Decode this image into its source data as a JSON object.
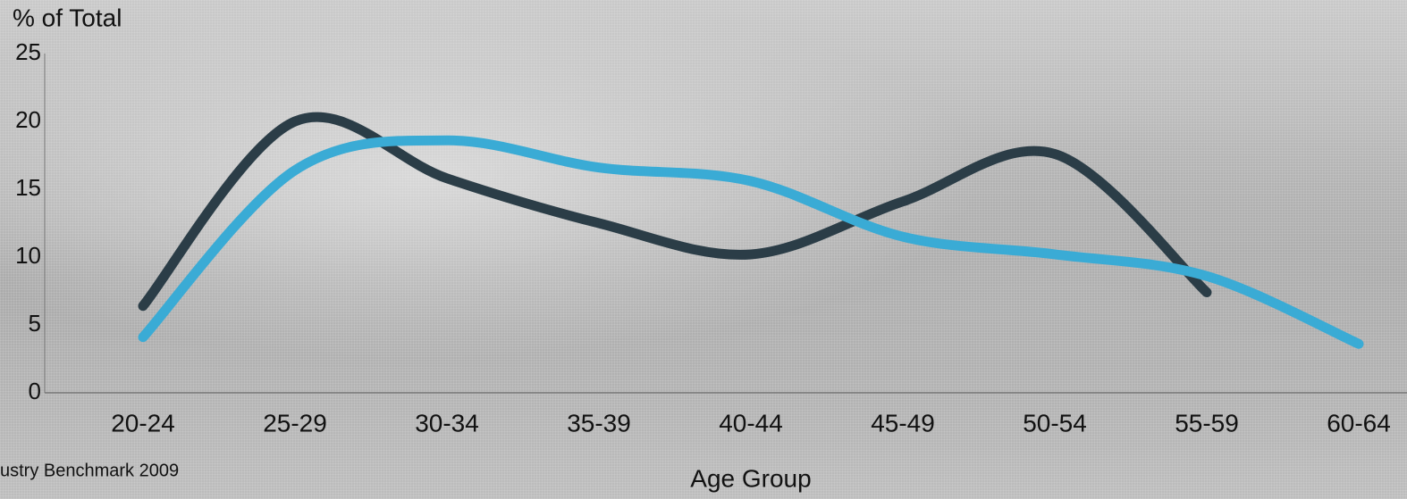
{
  "chart_data": {
    "type": "line",
    "y_label": "% of Total",
    "x_label": "Age Group",
    "source": "ustry Benchmark 2009",
    "categories": [
      "20-24",
      "25-29",
      "30-34",
      "35-39",
      "40-44",
      "45-49",
      "50-54",
      "55-59",
      "60-64"
    ],
    "series": [
      {
        "color": "#2b3d47",
        "values": [
          6.4,
          20,
          15.8,
          12.5,
          10.2,
          14.1,
          17.6,
          7.4,
          null
        ]
      },
      {
        "color": "#3aabd5",
        "values": [
          4.1,
          16.4,
          18.6,
          16.6,
          15.6,
          11.5,
          10.2,
          8.6,
          3.6
        ]
      }
    ],
    "ylim": [
      0,
      25
    ],
    "yticks": [
      0,
      5,
      10,
      15,
      20,
      25
    ],
    "grid": false
  }
}
